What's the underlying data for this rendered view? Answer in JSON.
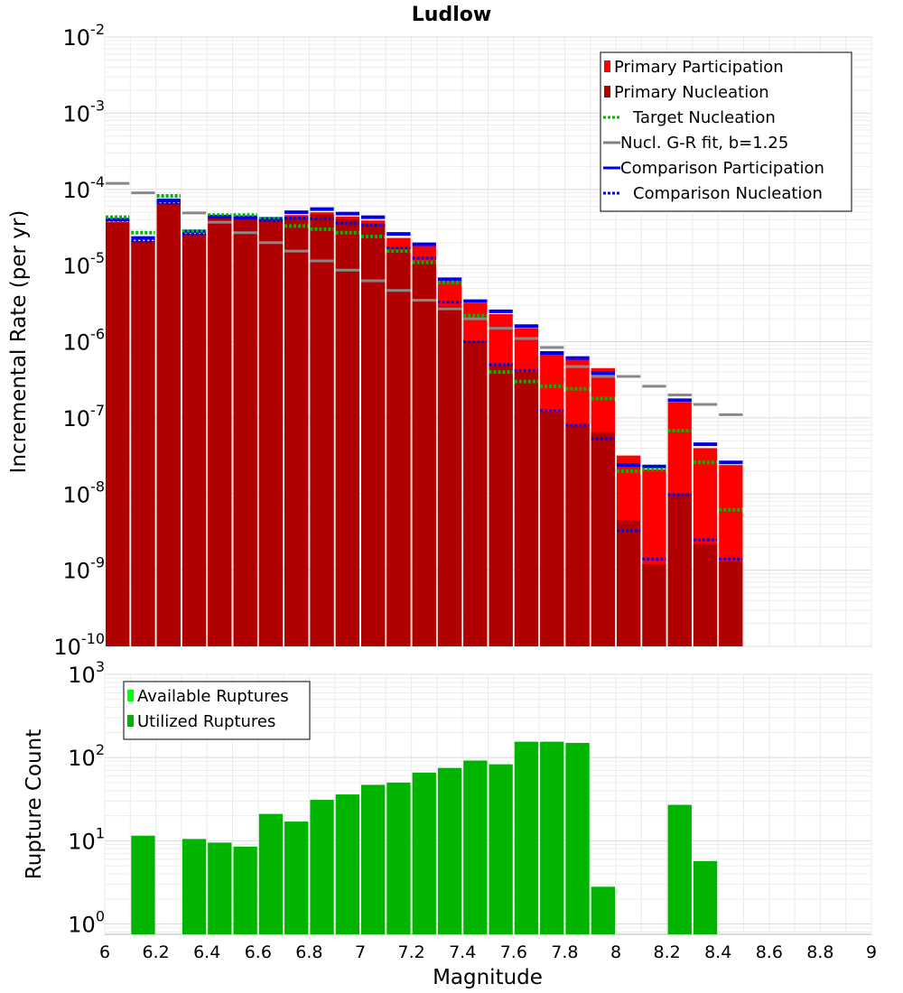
{
  "chart_data": [
    {
      "type": "bar",
      "title": "Ludlow",
      "ylabel": "Incremental Rate (per yr)",
      "xlabel": "Magnitude",
      "yscale": "log",
      "ylim": [
        1e-10,
        0.01
      ],
      "xlim": [
        6,
        9
      ],
      "grid": true,
      "legend_position": "top-right",
      "y_ticks": [
        {
          "base": "10",
          "exp": "-2"
        },
        {
          "base": "10",
          "exp": "-3"
        },
        {
          "base": "10",
          "exp": "-4"
        },
        {
          "base": "10",
          "exp": "-5"
        },
        {
          "base": "10",
          "exp": "-6"
        },
        {
          "base": "10",
          "exp": "-7"
        },
        {
          "base": "10",
          "exp": "-8"
        },
        {
          "base": "10",
          "exp": "-9"
        },
        {
          "base": "10",
          "exp": "-10"
        }
      ],
      "legend": [
        {
          "label": "Primary Participation",
          "style": "bar",
          "color": "#ff0000"
        },
        {
          "label": "Primary Nucleation",
          "style": "bar",
          "color": "#b00000"
        },
        {
          "label": "Target Nucleation",
          "style": "dotted",
          "color": "#00b800"
        },
        {
          "label": "Nucl. G-R fit, b=1.25",
          "style": "solid",
          "color": "#808080"
        },
        {
          "label": "Comparison Participation",
          "style": "solid",
          "color": "#0000ee"
        },
        {
          "label": "Comparison Nucleation",
          "style": "dotted",
          "color": "#0000ee"
        }
      ],
      "magnitudes": [
        6.05,
        6.15,
        6.25,
        6.35,
        6.45,
        6.55,
        6.65,
        6.75,
        6.85,
        6.95,
        7.05,
        7.15,
        7.25,
        7.35,
        7.45,
        7.55,
        7.65,
        7.75,
        7.85,
        7.95,
        8.05,
        8.15,
        8.25,
        8.35,
        8.45
      ],
      "series": [
        {
          "name": "Primary Participation",
          "color": "#ff0000",
          "values": [
            3.7e-05,
            2.1e-05,
            6.6e-05,
            2.6e-05,
            4.2e-05,
            4.1e-05,
            3.9e-05,
            4.6e-05,
            5e-05,
            4.4e-05,
            3.9e-05,
            2.3e-05,
            1.8e-05,
            6.3e-06,
            3.2e-06,
            2.3e-06,
            1.5e-06,
            6.8e-07,
            5.8e-07,
            4.5e-07,
            3.2e-08,
            2.1e-08,
            1.6e-07,
            4e-08,
            2.4e-08
          ]
        },
        {
          "name": "Primary Nucleation",
          "color": "#b00000",
          "values": [
            3.7e-05,
            2.1e-05,
            6.6e-05,
            2.6e-05,
            4.2e-05,
            4.1e-05,
            3.9e-05,
            4.3e-05,
            4.7e-05,
            4.1e-05,
            3.5e-05,
            1.6e-05,
            1.15e-05,
            2.9e-06,
            1e-06,
            5e-07,
            4e-07,
            1.2e-07,
            8e-08,
            6.5e-08,
            4.5e-09,
            1.2e-09,
            1e-08,
            2.2e-09,
            1.3e-09
          ]
        },
        {
          "name": "Target Nucleation",
          "color": "#00b800",
          "values": [
            4.3e-05,
            2.7e-05,
            8.2e-05,
            2.8e-05,
            4.6e-05,
            4.6e-05,
            4.1e-05,
            3.3e-05,
            3e-05,
            2.7e-05,
            2.4e-05,
            1.55e-05,
            1.1e-05,
            6e-06,
            2.2e-06,
            4e-07,
            3e-07,
            2.6e-07,
            2.4e-07,
            1.8e-07,
            2e-08,
            2.1e-08,
            6.8e-08,
            2.6e-08,
            6.2e-09
          ]
        },
        {
          "name": "Nucl. G-R fit, b=1.25",
          "color": "#808080",
          "values": [
            0.00012,
            9e-05,
            7.3e-05,
            4.9e-05,
            3.7e-05,
            2.7e-05,
            2e-05,
            1.55e-05,
            1.15e-05,
            8.7e-06,
            6.3e-06,
            4.7e-06,
            3.5e-06,
            2.7e-06,
            2e-06,
            1.5e-06,
            1.1e-06,
            8.4e-07,
            4.7e-07,
            3.5e-07,
            3.5e-07,
            2.6e-07,
            2e-07,
            1.5e-07,
            1.1e-07
          ]
        },
        {
          "name": "Comparison Participation",
          "color": "#0000ee",
          "values": [
            4e-05,
            2.3e-05,
            7.1e-05,
            2.8e-05,
            4.4e-05,
            4.3e-05,
            4.1e-05,
            5e-05,
            5.5e-05,
            4.8e-05,
            4.3e-05,
            2.6e-05,
            1.9e-05,
            6.6e-06,
            3.4e-06,
            2.5e-06,
            1.6e-06,
            7.1e-07,
            6.1e-07,
            3.9e-07,
            2.4e-08,
            2.3e-08,
            1.7e-07,
            4.5e-08,
            2.6e-08
          ]
        },
        {
          "name": "Comparison Nucleation",
          "color": "#0000ee",
          "values": [
            3.9e-05,
            2.1e-05,
            6.6e-05,
            2.6e-05,
            4.3e-05,
            4.2e-05,
            3.9e-05,
            4.2e-05,
            4.1e-05,
            3.6e-05,
            3.4e-05,
            1.7e-05,
            1.25e-05,
            3.3e-06,
            1e-06,
            5e-07,
            4.2e-07,
            1.25e-07,
            8e-08,
            5.3e-08,
            3.3e-09,
            1.4e-09,
            9.8e-09,
            2.5e-09,
            1.4e-09
          ]
        }
      ]
    },
    {
      "type": "bar",
      "ylabel": "Rupture Count",
      "xlabel": "Magnitude",
      "yscale": "log",
      "ylim": [
        0.75,
        1000
      ],
      "xlim": [
        6,
        9
      ],
      "grid": true,
      "legend_position": "top-left",
      "y_ticks": [
        {
          "base": "10",
          "exp": "3"
        },
        {
          "base": "10",
          "exp": "2"
        },
        {
          "base": "10",
          "exp": "1"
        },
        {
          "base": "10",
          "exp": "0"
        }
      ],
      "x_ticks": [
        "6",
        "6.2",
        "6.4",
        "6.6",
        "6.8",
        "7",
        "7.2",
        "7.4",
        "7.6",
        "7.8",
        "8",
        "8.2",
        "8.4",
        "8.6",
        "8.8",
        "9"
      ],
      "legend": [
        {
          "label": "Available Ruptures",
          "style": "bar",
          "color": "#00ff00"
        },
        {
          "label": "Utilized Ruptures",
          "style": "bar",
          "color": "#00b400"
        }
      ],
      "magnitudes": [
        6.15,
        6.35,
        6.45,
        6.55,
        6.65,
        6.75,
        6.85,
        6.95,
        7.05,
        7.15,
        7.25,
        7.35,
        7.45,
        7.55,
        7.65,
        7.75,
        7.85,
        7.95,
        8.25,
        8.35
      ],
      "series": [
        {
          "name": "Utilized Ruptures",
          "color": "#00b400",
          "values": [
            11.5,
            10.5,
            9.5,
            8.5,
            21,
            17,
            31,
            36,
            47,
            50,
            66,
            75,
            92,
            83,
            155,
            155,
            150,
            2.8,
            27,
            5.7
          ]
        }
      ]
    }
  ]
}
